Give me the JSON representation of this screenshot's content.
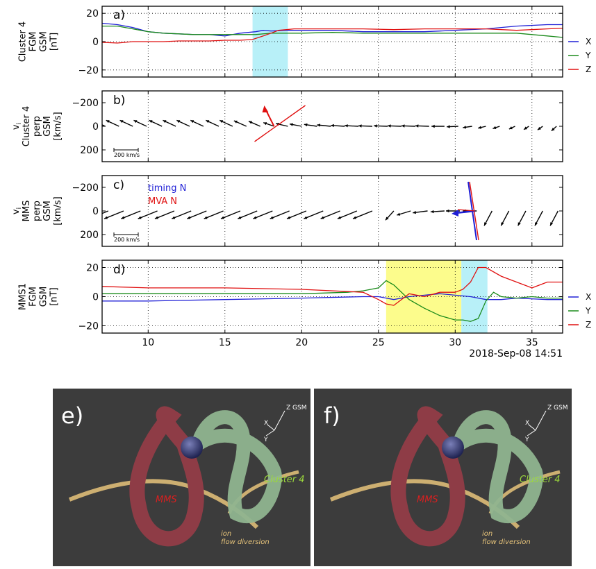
{
  "timestamp_label": "2018-Sep-08 14:51",
  "panel_letters": [
    "a)",
    "b)",
    "c)",
    "d)",
    "e)",
    "f)"
  ],
  "legend": {
    "x": "X",
    "y": "Y",
    "z": "Z",
    "colors": {
      "x": "#1f1fd6",
      "y": "#1a8a1a",
      "z": "#e01010"
    }
  },
  "vector_scale_label": "200 km/s",
  "timing_label": "timing N",
  "mva_label": "MVA N",
  "shading": {
    "cyan": "#b8f0f8",
    "yellow": "#fcfc8c"
  },
  "render_labels": {
    "z_gsm": "Z GSM",
    "x_axis": "X",
    "y_axis": "Y",
    "mms": "MMS",
    "cluster4": "Cluster 4",
    "ion_line1": "ion",
    "ion_line2": "flow diversion"
  },
  "chart_data": [
    {
      "id": "a",
      "type": "line",
      "ylabel_lines": [
        "Cluster 4",
        "FGM",
        "GSM",
        "[nT]"
      ],
      "ylim": [
        -25,
        25
      ],
      "yticks": [
        20,
        0,
        -20
      ],
      "xlim": [
        7,
        37
      ],
      "grid": "dotted",
      "legend_placement": "right",
      "shaded": [
        {
          "from": 16.8,
          "to": 19.1,
          "color": "cyan"
        }
      ],
      "series": [
        {
          "name": "X",
          "color": "x",
          "x": [
            7,
            8,
            9,
            10,
            11,
            12,
            13,
            14,
            15,
            16,
            17,
            17.5,
            18,
            19,
            20,
            22,
            24,
            26,
            28,
            30,
            32,
            34,
            36,
            37
          ],
          "values": [
            13,
            12,
            10,
            7,
            6,
            5.5,
            5,
            5,
            4,
            6,
            7,
            8,
            7.5,
            8,
            8,
            8,
            7,
            7,
            7,
            8,
            9,
            11,
            12,
            12
          ]
        },
        {
          "name": "Y",
          "color": "y",
          "x": [
            7,
            8,
            9,
            10,
            11,
            12,
            13,
            14,
            15,
            16,
            17,
            18,
            19,
            20,
            22,
            24,
            26,
            28,
            30,
            32,
            34,
            35,
            36,
            37
          ],
          "values": [
            11,
            11,
            9,
            7,
            6,
            5.5,
            5,
            5,
            5,
            5,
            5,
            6,
            6,
            6,
            6.5,
            6,
            6,
            6,
            6,
            6,
            6,
            5,
            4,
            3
          ]
        },
        {
          "name": "Z",
          "color": "z",
          "x": [
            7,
            8,
            9,
            10,
            11,
            12,
            13,
            14,
            15,
            16,
            16.8,
            17.5,
            18,
            18.5,
            19,
            19.5,
            20,
            22,
            24,
            26,
            28,
            30,
            32,
            34,
            36,
            37
          ],
          "values": [
            -0.5,
            -1,
            0,
            0,
            0,
            0.5,
            0.5,
            0.5,
            1,
            1,
            1.5,
            4,
            6,
            8,
            8.5,
            9,
            9,
            9,
            9,
            8.5,
            9,
            9,
            9,
            8,
            9,
            9.5
          ]
        }
      ]
    },
    {
      "id": "b",
      "type": "quiver",
      "ylabel_lines": [
        "v_i",
        "Cluster 4",
        "perp",
        "GSM",
        "[km/s]"
      ],
      "ylim": [
        300,
        -300
      ],
      "yticks": [
        -200,
        0,
        200
      ],
      "xlim": [
        7,
        37
      ],
      "vectors": [
        {
          "t": 7.2,
          "vx": -280,
          "vy": -130
        },
        {
          "t": 8.1,
          "vx": -280,
          "vy": -130
        },
        {
          "t": 9.0,
          "vx": -280,
          "vy": -130
        },
        {
          "t": 9.9,
          "vx": -280,
          "vy": -130
        },
        {
          "t": 10.9,
          "vx": -280,
          "vy": -130
        },
        {
          "t": 11.8,
          "vx": -280,
          "vy": -130
        },
        {
          "t": 12.7,
          "vx": -280,
          "vy": -130
        },
        {
          "t": 13.6,
          "vx": -280,
          "vy": -130
        },
        {
          "t": 14.6,
          "vx": -280,
          "vy": -130
        },
        {
          "t": 15.5,
          "vx": -280,
          "vy": -130
        },
        {
          "t": 16.4,
          "vx": -270,
          "vy": -120
        },
        {
          "t": 17.3,
          "vx": -250,
          "vy": -110
        },
        {
          "t": 18.2,
          "vx": -230,
          "vy": -80
        },
        {
          "t": 19.1,
          "vx": -260,
          "vy": -60
        },
        {
          "t": 20.0,
          "vx": -260,
          "vy": -50
        },
        {
          "t": 21.0,
          "vx": -280,
          "vy": -40
        },
        {
          "t": 21.9,
          "vx": -300,
          "vy": -30
        },
        {
          "t": 22.8,
          "vx": -300,
          "vy": -20
        },
        {
          "t": 23.7,
          "vx": -300,
          "vy": -15
        },
        {
          "t": 24.6,
          "vx": -300,
          "vy": -10
        },
        {
          "t": 25.6,
          "vx": -300,
          "vy": -10
        },
        {
          "t": 26.5,
          "vx": -300,
          "vy": -10
        },
        {
          "t": 27.4,
          "vx": -300,
          "vy": -10
        },
        {
          "t": 28.3,
          "vx": -300,
          "vy": -10
        },
        {
          "t": 29.3,
          "vx": -280,
          "vy": 0
        },
        {
          "t": 30.2,
          "vx": -250,
          "vy": 10
        },
        {
          "t": 31.1,
          "vx": -200,
          "vy": 30
        },
        {
          "t": 32.0,
          "vx": -170,
          "vy": 40
        },
        {
          "t": 32.9,
          "vx": -150,
          "vy": 50
        },
        {
          "t": 33.9,
          "vx": -130,
          "vy": 60
        },
        {
          "t": 34.8,
          "vx": -110,
          "vy": 70
        },
        {
          "t": 35.7,
          "vx": -110,
          "vy": 80
        },
        {
          "t": 36.6,
          "vx": -110,
          "vy": 100
        }
      ],
      "normal_at": 18.2
    },
    {
      "id": "c",
      "type": "quiver",
      "ylabel_lines": [
        "v_i",
        "MMS",
        "perp",
        "GSM",
        "[km/s]"
      ],
      "ylim": [
        300,
        -300
      ],
      "yticks": [
        -200,
        0,
        200
      ],
      "xlim": [
        7,
        37
      ],
      "vectors": [
        {
          "t": 7.4,
          "vx": -420,
          "vy": 170
        },
        {
          "t": 8.4,
          "vx": -420,
          "vy": 170
        },
        {
          "t": 9.5,
          "vx": -420,
          "vy": 170
        },
        {
          "t": 10.6,
          "vx": -420,
          "vy": 170
        },
        {
          "t": 11.7,
          "vx": -420,
          "vy": 170
        },
        {
          "t": 12.8,
          "vx": -420,
          "vy": 170
        },
        {
          "t": 13.8,
          "vx": -420,
          "vy": 170
        },
        {
          "t": 14.9,
          "vx": -420,
          "vy": 170
        },
        {
          "t": 16.0,
          "vx": -420,
          "vy": 170
        },
        {
          "t": 17.1,
          "vx": -420,
          "vy": 170
        },
        {
          "t": 18.1,
          "vx": -420,
          "vy": 170
        },
        {
          "t": 19.2,
          "vx": -420,
          "vy": 170
        },
        {
          "t": 20.3,
          "vx": -420,
          "vy": 170
        },
        {
          "t": 21.4,
          "vx": -420,
          "vy": 170
        },
        {
          "t": 22.5,
          "vx": -420,
          "vy": 170
        },
        {
          "t": 23.6,
          "vx": -420,
          "vy": 170
        },
        {
          "t": 24.6,
          "vx": -420,
          "vy": 170
        },
        {
          "t": 26.0,
          "vx": -180,
          "vy": 200
        },
        {
          "t": 27.1,
          "vx": -300,
          "vy": 90
        },
        {
          "t": 28.2,
          "vx": -320,
          "vy": 40
        },
        {
          "t": 29.3,
          "vx": -300,
          "vy": 20
        },
        {
          "t": 30.3,
          "vx": -300,
          "vy": 0
        },
        {
          "t": 31.4,
          "vx": -300,
          "vy": 0
        },
        {
          "t": 32.4,
          "vx": -170,
          "vy": 320
        },
        {
          "t": 33.5,
          "vx": -170,
          "vy": 320
        },
        {
          "t": 34.6,
          "vx": -170,
          "vy": 320
        },
        {
          "t": 35.7,
          "vx": -170,
          "vy": 320
        },
        {
          "t": 36.7,
          "vx": -170,
          "vy": 320
        }
      ],
      "normal_at": 31.3
    },
    {
      "id": "d",
      "type": "line",
      "ylabel_lines": [
        "MMS1",
        "FGM",
        "GSM",
        "[nT]"
      ],
      "ylim": [
        -25,
        25
      ],
      "yticks": [
        20,
        0,
        -20
      ],
      "xlim": [
        7,
        37
      ],
      "xticks": [
        10,
        15,
        20,
        25,
        30,
        35
      ],
      "grid": "dotted",
      "legend_placement": "right",
      "shaded": [
        {
          "from": 25.5,
          "to": 30.4,
          "color": "yellow"
        },
        {
          "from": 30.4,
          "to": 32.1,
          "color": "cyan"
        }
      ],
      "series": [
        {
          "name": "X",
          "color": "x",
          "x": [
            7,
            10,
            15,
            20,
            24,
            25,
            26,
            27,
            28,
            29,
            30,
            31,
            32,
            33,
            34,
            36,
            37
          ],
          "values": [
            -3,
            -3,
            -2,
            -1,
            0,
            0,
            -2,
            0,
            1,
            2,
            1,
            0,
            -2,
            -2,
            -1,
            -2,
            -2
          ]
        },
        {
          "name": "Y",
          "color": "y",
          "x": [
            7,
            10,
            15,
            20,
            23,
            24,
            25,
            25.5,
            26,
            27,
            28,
            29,
            30,
            30.5,
            31,
            31.5,
            32,
            32.5,
            33,
            34,
            35,
            36,
            37
          ],
          "values": [
            2,
            2,
            2,
            2,
            3,
            4,
            6,
            11,
            8,
            -2,
            -8,
            -13,
            -16,
            -16,
            -17,
            -15,
            -3,
            3,
            0,
            -1,
            0,
            -1,
            -1
          ]
        },
        {
          "name": "Z",
          "color": "z",
          "x": [
            7,
            10,
            15,
            20,
            24,
            25,
            25.5,
            26,
            27,
            28,
            29,
            30,
            30.5,
            31,
            31.5,
            32,
            33,
            34,
            35,
            36,
            37
          ],
          "values": [
            7,
            6,
            6,
            5,
            3,
            -2,
            -5,
            -6,
            2,
            0,
            3,
            3,
            5,
            10,
            20,
            20,
            14,
            10,
            6,
            10,
            10
          ]
        }
      ]
    }
  ]
}
